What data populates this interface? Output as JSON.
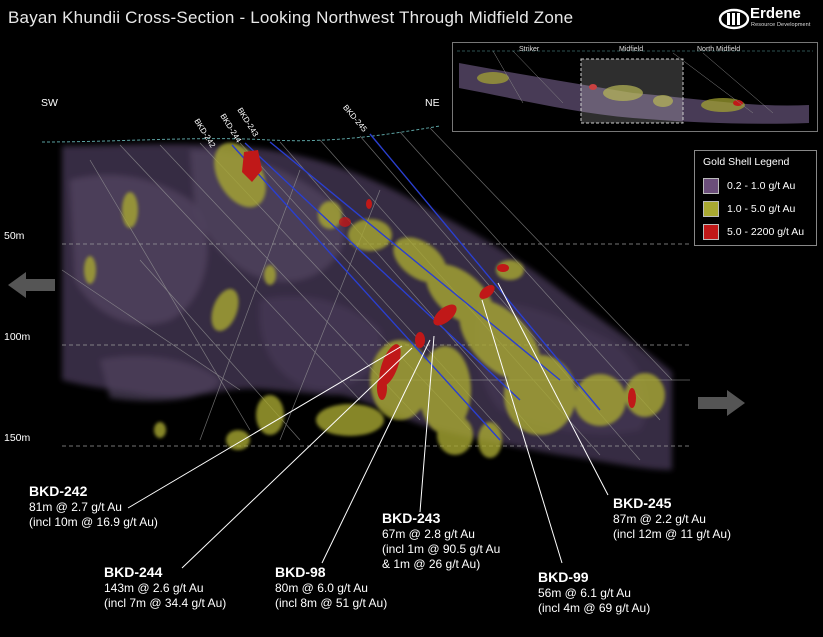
{
  "title": "Bayan Khundii Cross-Section - Looking Northwest Through Midfield Zone",
  "logo": {
    "name": "Erdene",
    "sub": "Resource Development"
  },
  "directions": {
    "left": "SW",
    "right": "NE"
  },
  "depths": [
    "50m",
    "100m",
    "150m"
  ],
  "inset": {
    "labels": [
      "Striker",
      "Midfield",
      "North Midfield"
    ]
  },
  "legend": {
    "title": "Gold Shell Legend",
    "items": [
      {
        "label": "0.2 - 1.0 g/t Au",
        "color": "#6b4e7a"
      },
      {
        "label": "1.0 - 5.0 g/t Au",
        "color": "#a8a832"
      },
      {
        "label": "5.0 - 2200 g/t Au",
        "color": "#c01818"
      }
    ]
  },
  "collar_labels": [
    "BKD-242",
    "BKD-244",
    "BKD-243",
    "BKD-245"
  ],
  "callouts": [
    {
      "hole": "BKD-242",
      "lines": [
        "81m @ 2.7 g/t Au",
        "(incl 10m @ 16.9 g/t Au)"
      ]
    },
    {
      "hole": "BKD-244",
      "lines": [
        "143m @ 2.6 g/t Au",
        "(incl 7m @ 34.4 g/t Au)"
      ]
    },
    {
      "hole": "BKD-98",
      "lines": [
        "80m @ 6.0 g/t Au",
        "(incl 8m @ 51 g/t Au)"
      ]
    },
    {
      "hole": "BKD-243",
      "lines": [
        "67m @ 2.8 g/t Au",
        "(incl 1m @ 90.5 g/t Au",
        "& 1m @ 26 g/t Au)"
      ]
    },
    {
      "hole": "BKD-99",
      "lines": [
        "56m @ 6.1 g/t Au",
        "(incl 4m @ 69 g/t Au)"
      ]
    },
    {
      "hole": "BKD-245",
      "lines": [
        "87m @ 2.2 g/t Au",
        "(incl 12m @ 11 g/t Au)"
      ]
    }
  ],
  "colors": {
    "purple": "#6b4e7a",
    "yellow": "#a8a832",
    "red": "#c01818",
    "drill_blue": "#2a3fd0"
  }
}
